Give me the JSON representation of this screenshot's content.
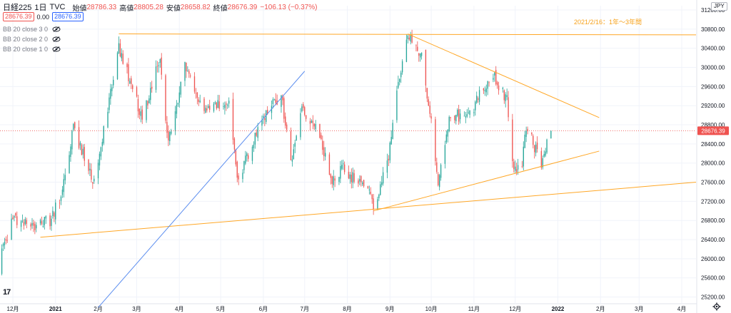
{
  "header": {
    "symbol": "日経225",
    "interval": "1日",
    "source": "TVC",
    "open_label": "始値",
    "open": "28786.33",
    "high_label": "高値",
    "high": "28805.28",
    "low_label": "安値",
    "low": "28658.82",
    "close_label": "終値",
    "close": "28676.39",
    "change": "−106.13 (−0.37%)",
    "badge_left": "28676.39",
    "badge_mid": "0.00",
    "badge_right": "28676.39"
  },
  "indicators": [
    {
      "label": "BB 20 close 3 0",
      "icon": "eye-off-icon"
    },
    {
      "label": "BB 20 close 2 0",
      "icon": "eye-off-icon"
    },
    {
      "label": "BB 20 close 1 0",
      "icon": "eye-off-icon"
    }
  ],
  "currency": "JPY",
  "annotation": "2021/2/16：1年〜3年間",
  "last_price": "28676.39",
  "colors": {
    "up": "#26a69a",
    "down": "#ef5350",
    "trend_orange": "#ffa726",
    "trend_blue": "#5b8def",
    "annotation": "#f7a21b",
    "price_tag": "#ef5350"
  },
  "chart_data": {
    "type": "candlestick",
    "ylim": [
      25000,
      31200
    ],
    "y_ticks": [
      25200,
      25600,
      26000,
      26400,
      26800,
      27200,
      27600,
      28000,
      28400,
      28800,
      29200,
      29600,
      30000,
      30400,
      30800,
      31200
    ],
    "x_ticks": [
      "12月",
      "2021",
      "2月",
      "3月",
      "4月",
      "5月",
      "6月",
      "7月",
      "8月",
      "9月",
      "10月",
      "11月",
      "12月",
      "2022",
      "2月",
      "3月",
      "4月"
    ],
    "x_tick_dates": [
      "2020-12-01",
      "2021-01-01",
      "2021-02-01",
      "2021-03-01",
      "2021-04-01",
      "2021-05-01",
      "2021-06-01",
      "2021-07-01",
      "2021-08-01",
      "2021-09-01",
      "2021-10-01",
      "2021-11-01",
      "2021-12-01",
      "2022-01-01",
      "2022-02-01",
      "2022-03-01",
      "2022-04-01"
    ],
    "anchors": [
      {
        "date": "2020-11-18",
        "close": 25600
      },
      {
        "date": "2020-11-25",
        "close": 26300
      },
      {
        "date": "2020-12-01",
        "close": 26800
      },
      {
        "date": "2020-12-14",
        "close": 26700
      },
      {
        "date": "2020-12-28",
        "close": 26800
      },
      {
        "date": "2021-01-04",
        "close": 27250
      },
      {
        "date": "2021-01-14",
        "close": 28700
      },
      {
        "date": "2021-01-29",
        "close": 27600
      },
      {
        "date": "2021-02-16",
        "close": 30450
      },
      {
        "date": "2021-03-05",
        "close": 28900
      },
      {
        "date": "2021-03-18",
        "close": 30200
      },
      {
        "date": "2021-03-24",
        "close": 28400
      },
      {
        "date": "2021-04-05",
        "close": 30000
      },
      {
        "date": "2021-04-20",
        "close": 29100
      },
      {
        "date": "2021-05-07",
        "close": 29350
      },
      {
        "date": "2021-05-13",
        "close": 27600
      },
      {
        "date": "2021-05-31",
        "close": 28900
      },
      {
        "date": "2021-06-14",
        "close": 29450
      },
      {
        "date": "2021-06-21",
        "close": 28000
      },
      {
        "date": "2021-06-28",
        "close": 29100
      },
      {
        "date": "2021-07-12",
        "close": 28600
      },
      {
        "date": "2021-07-20",
        "close": 27600
      },
      {
        "date": "2021-07-28",
        "close": 27900
      },
      {
        "date": "2021-08-05",
        "close": 27700
      },
      {
        "date": "2021-08-16",
        "close": 27500
      },
      {
        "date": "2021-08-20",
        "close": 27050
      },
      {
        "date": "2021-08-31",
        "close": 28100
      },
      {
        "date": "2021-09-07",
        "close": 29700
      },
      {
        "date": "2021-09-14",
        "close": 30650
      },
      {
        "date": "2021-09-24",
        "close": 30200
      },
      {
        "date": "2021-10-01",
        "close": 28800
      },
      {
        "date": "2021-10-06",
        "close": 27550
      },
      {
        "date": "2021-10-15",
        "close": 29050
      },
      {
        "date": "2021-10-27",
        "close": 28900
      },
      {
        "date": "2021-11-08",
        "close": 29600
      },
      {
        "date": "2021-11-16",
        "close": 29800
      },
      {
        "date": "2021-11-25",
        "close": 29300
      },
      {
        "date": "2021-11-30",
        "close": 27800
      },
      {
        "date": "2021-12-06",
        "close": 28000
      },
      {
        "date": "2021-12-09",
        "close": 28750
      },
      {
        "date": "2021-12-20",
        "close": 28000
      },
      {
        "date": "2021-12-27",
        "close": 28676
      }
    ],
    "trendlines": [
      {
        "name": "resistance-top",
        "color": "orange",
        "from": {
          "date": "2021-02-16",
          "price": 30700
        },
        "to": {
          "date": "2022-04-30",
          "price": 30680
        }
      },
      {
        "name": "triangle-upper",
        "color": "orange",
        "from": {
          "date": "2021-09-14",
          "price": 30700
        },
        "to": {
          "date": "2022-01-31",
          "price": 28950
        }
      },
      {
        "name": "triangle-lower",
        "color": "orange",
        "from": {
          "date": "2021-08-20",
          "price": 27000
        },
        "to": {
          "date": "2022-01-31",
          "price": 28250
        }
      },
      {
        "name": "long-support",
        "color": "orange",
        "from": {
          "date": "2020-12-21",
          "price": 26450
        },
        "to": {
          "date": "2022-05-10",
          "price": 27600
        }
      },
      {
        "name": "rising-blue",
        "color": "blue",
        "from": {
          "date": "2021-02-01",
          "price": 24980
        },
        "to": {
          "date": "2021-07-01",
          "price": 29920
        }
      }
    ]
  }
}
